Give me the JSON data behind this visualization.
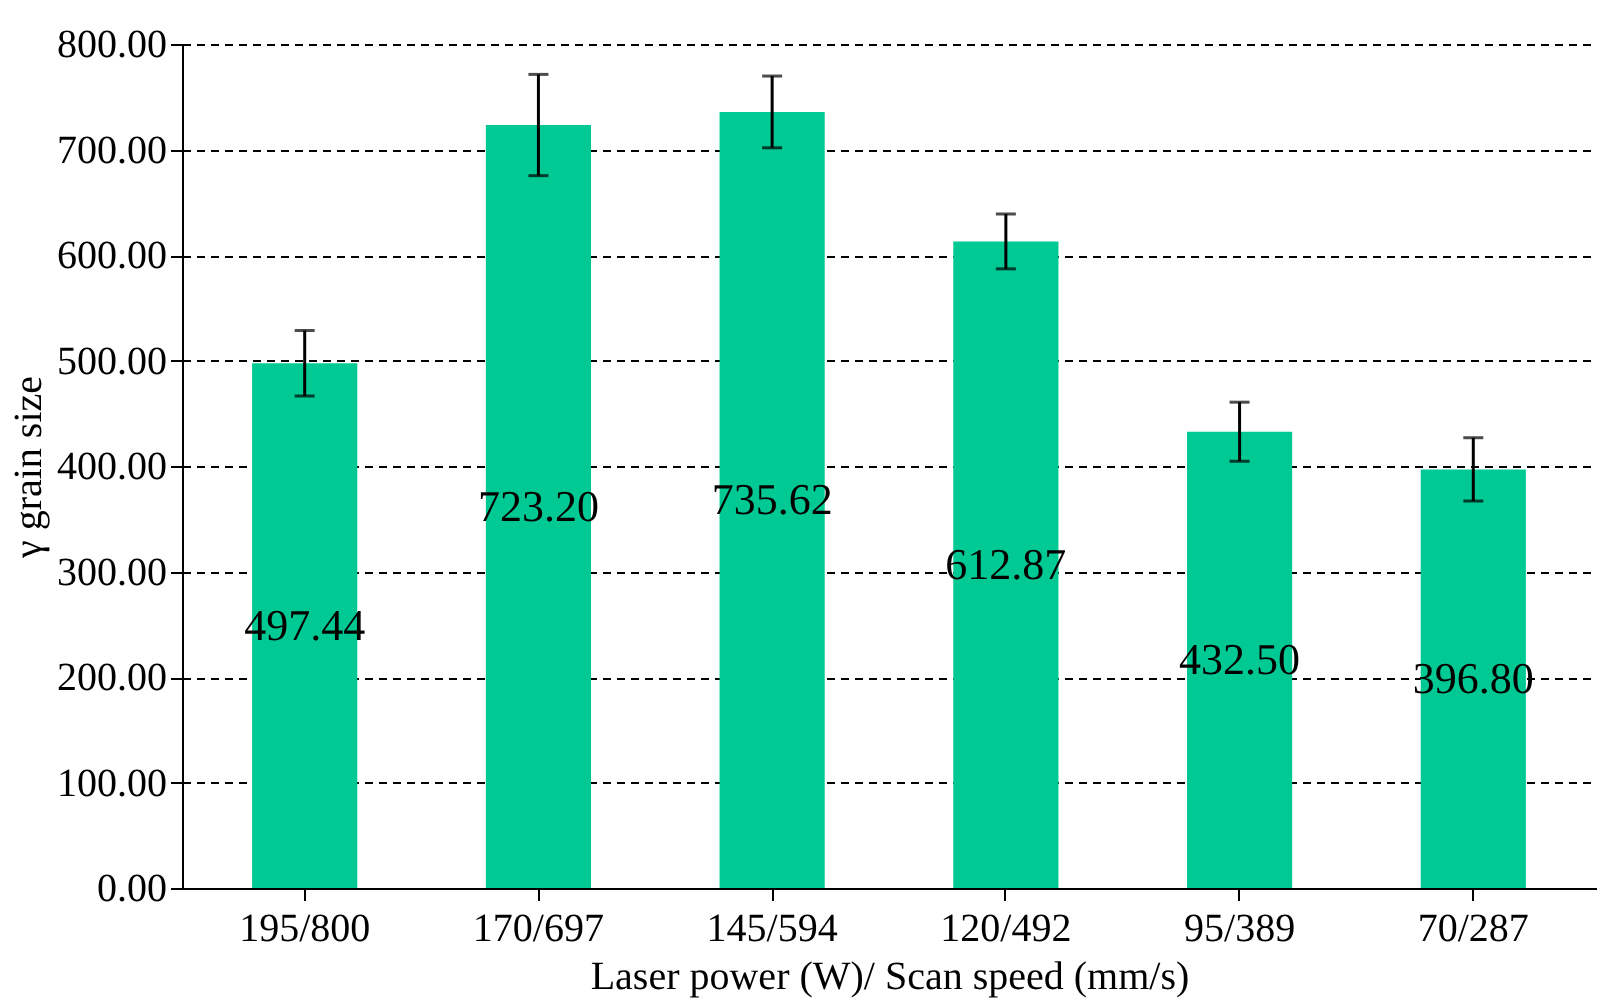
{
  "chart_data": {
    "type": "bar",
    "xlabel": "Laser power (W)/ Scan speed (mm/s)",
    "ylabel": "γ grain size",
    "categories": [
      "195/800",
      "170/697",
      "145/594",
      "120/492",
      "95/389",
      "70/287"
    ],
    "values": [
      497.44,
      723.2,
      735.62,
      612.87,
      432.5,
      396.8
    ],
    "errors": [
      31,
      48,
      34,
      26,
      28,
      30
    ],
    "color": "#00c994",
    "ylim": [
      0,
      800
    ],
    "yticks": [
      {
        "value": 0,
        "label": "0.00"
      },
      {
        "value": 100,
        "label": "100.00"
      },
      {
        "value": 200,
        "label": "200.00"
      },
      {
        "value": 300,
        "label": "300.00"
      },
      {
        "value": 400,
        "label": "400.00"
      },
      {
        "value": 500,
        "label": "500.00"
      },
      {
        "value": 600,
        "label": "600.00"
      },
      {
        "value": 700,
        "label": "700.00"
      },
      {
        "value": 800,
        "label": "800.00"
      }
    ],
    "value_labels": [
      "497.44",
      "723.20",
      "735.62",
      "612.87",
      "432.50",
      "396.80"
    ],
    "grid": "y",
    "line_style": "dashed"
  }
}
